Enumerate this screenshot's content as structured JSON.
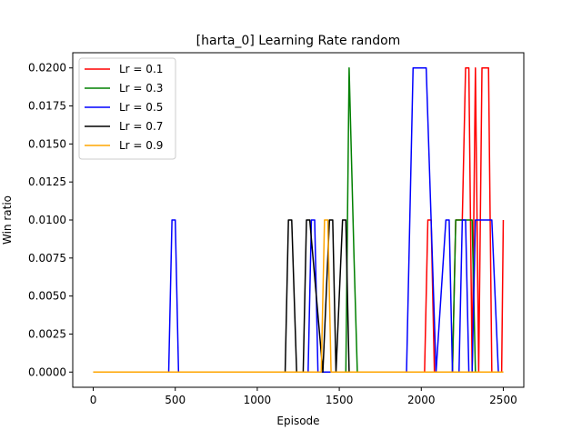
{
  "chart_data": {
    "type": "line",
    "title": "[harta_0] Learning Rate  random",
    "xlabel": "Episode",
    "ylabel": "Win ratio",
    "xlim": [
      -125,
      2625
    ],
    "ylim": [
      -0.001,
      0.021
    ],
    "xticks": [
      0,
      500,
      1000,
      1500,
      2000,
      2500
    ],
    "xtick_labels": [
      "0",
      "500",
      "1000",
      "1500",
      "2000",
      "2500"
    ],
    "yticks": [
      0.0,
      0.0025,
      0.005,
      0.0075,
      0.01,
      0.0125,
      0.015,
      0.0175,
      0.02
    ],
    "ytick_labels": [
      "0.0000",
      "0.0025",
      "0.0050",
      "0.0075",
      "0.0100",
      "0.0125",
      "0.0150",
      "0.0175",
      "0.0200"
    ],
    "grid": false,
    "legend_position": "upper left",
    "series": [
      {
        "name": "Lr = 0.1",
        "color": "#ff0000",
        "x": [
          0,
          2020,
          2040,
          2060,
          2080,
          2100,
          2190,
          2210,
          2250,
          2270,
          2290,
          2310,
          2330,
          2350,
          2370,
          2390,
          2410,
          2430,
          2450,
          2490,
          2500
        ],
        "y": [
          0,
          0,
          0.01,
          0.01,
          0,
          0,
          0,
          0.01,
          0.01,
          0.02,
          0.02,
          0,
          0.02,
          0,
          0.02,
          0.02,
          0.02,
          0,
          0,
          0,
          0.01
        ]
      },
      {
        "name": "Lr = 0.3",
        "color": "#008000",
        "x": [
          0,
          1420,
          1440,
          1500,
          1540,
          1560,
          1590,
          1610,
          2190,
          2210,
          2250,
          2270,
          2290,
          2310,
          2330,
          2500
        ],
        "y": [
          0,
          0,
          0,
          0,
          0,
          0.02,
          0.0075,
          0,
          0,
          0.01,
          0.01,
          0.01,
          0.01,
          0.01,
          0,
          0
        ]
      },
      {
        "name": "Lr = 0.5",
        "color": "#0000ff",
        "x": [
          0,
          460,
          480,
          500,
          520,
          1310,
          1330,
          1350,
          1370,
          1910,
          1950,
          1970,
          2030,
          2060,
          2090,
          2150,
          2170,
          2190,
          2210,
          2230,
          2250,
          2270,
          2290,
          2310,
          2330,
          2350,
          2370,
          2430,
          2470,
          2500
        ],
        "y": [
          0,
          0,
          0.01,
          0.01,
          0,
          0,
          0.01,
          0.01,
          0,
          0,
          0.02,
          0.02,
          0.02,
          0.01,
          0,
          0.01,
          0.01,
          0,
          0,
          0,
          0.01,
          0.01,
          0,
          0,
          0.01,
          0.01,
          0.01,
          0.01,
          0,
          0
        ]
      },
      {
        "name": "Lr = 0.7",
        "color": "#000000",
        "x": [
          0,
          1170,
          1190,
          1210,
          1240,
          1280,
          1300,
          1320,
          1400,
          1440,
          1460,
          1480,
          1520,
          1540,
          1560,
          2500
        ],
        "y": [
          0,
          0,
          0.01,
          0.01,
          0,
          0,
          0.01,
          0.01,
          0,
          0.01,
          0.01,
          0,
          0.01,
          0.01,
          0,
          0
        ]
      },
      {
        "name": "Lr = 0.9",
        "color": "#ffa500",
        "x": [
          0,
          1390,
          1410,
          1430,
          1450,
          2500
        ],
        "y": [
          0,
          0,
          0.01,
          0.01,
          0,
          0
        ]
      }
    ]
  }
}
